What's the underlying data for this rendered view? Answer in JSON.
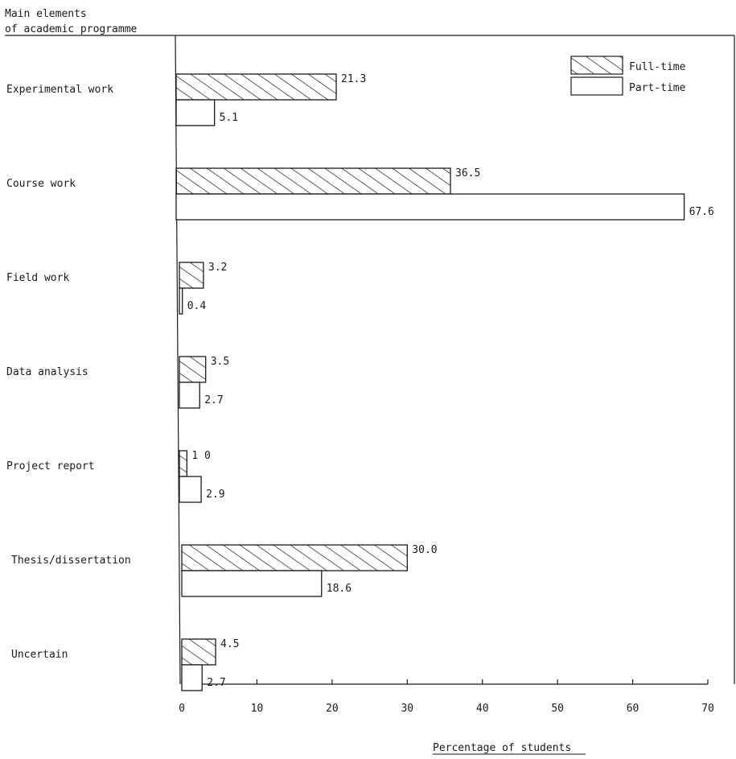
{
  "chart_data": {
    "type": "bar",
    "orientation": "horizontal",
    "ylabel_line1": "Main elements",
    "ylabel_line2": "of academic programme",
    "xlabel": "Percentage of students",
    "xlim": [
      0,
      70
    ],
    "xticks": [
      "0",
      "10",
      "20",
      "30",
      "40",
      "50",
      "60",
      "70"
    ],
    "categories": [
      "Experimental work",
      "Course work",
      "Field work",
      "Data analysis",
      "Project report",
      "Thesis/dissertation",
      "Uncertain"
    ],
    "series": [
      {
        "name": "Full-time",
        "pattern": "hatched",
        "values": [
          21.3,
          36.5,
          3.2,
          3.5,
          1.0,
          30.0,
          4.5
        ],
        "labels": [
          "21.3",
          "36.5",
          "3.2",
          "3.5",
          "1 0",
          "30.0",
          "4.5"
        ]
      },
      {
        "name": "Part-time",
        "pattern": "open",
        "values": [
          5.1,
          67.6,
          0.4,
          2.7,
          2.9,
          18.6,
          2.7
        ],
        "labels": [
          "5.1",
          "67.6",
          "0.4",
          "2.7",
          "2.9",
          "18.6",
          "2.7"
        ]
      }
    ],
    "legend_position": "top-right",
    "grid": false,
    "colors": {
      "ink": "#1a1a1a",
      "background": "#ffffff"
    }
  }
}
